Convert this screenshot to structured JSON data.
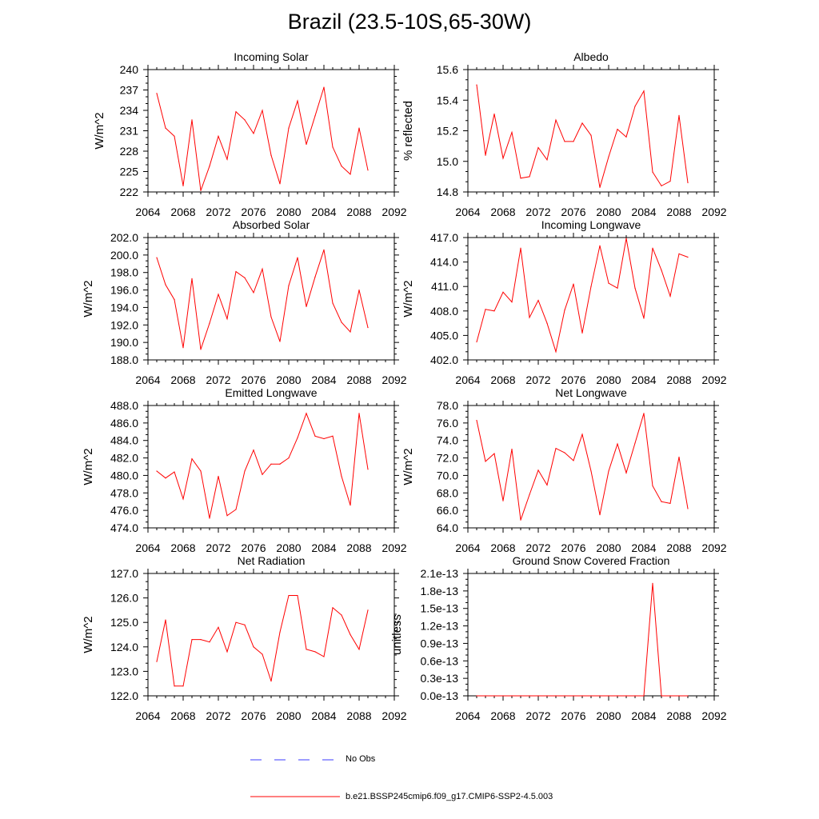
{
  "title": "Brazil (23.5-10S,65-30W)",
  "xaxis": {
    "min": 2064,
    "max": 2092,
    "ticks": [
      "2064",
      "2068",
      "2072",
      "2076",
      "2080",
      "2084",
      "2088",
      "2092"
    ]
  },
  "colors": {
    "model": "#ff0000",
    "obs": "#3b3bff",
    "axis": "#000000"
  },
  "legend": {
    "obs_label": "No Obs",
    "model_label": "b.e21.BSSP245cmip6.f09_g17.CMIP6-SSP2-4.5.003"
  },
  "chart_data": [
    {
      "type": "line",
      "title": "Incoming Solar",
      "ylabel": "W/m^2",
      "ylim": [
        222,
        240
      ],
      "yticks": [
        "222",
        "225",
        "228",
        "231",
        "234",
        "237",
        "240"
      ],
      "x": [
        2065,
        2066,
        2067,
        2068,
        2069,
        2070,
        2071,
        2072,
        2073,
        2074,
        2075,
        2076,
        2077,
        2078,
        2079,
        2080,
        2081,
        2082,
        2083,
        2084,
        2085,
        2086,
        2087,
        2088,
        2089
      ],
      "series": [
        {
          "name": "b.e21.BSSP245cmip6.f09_g17.CMIP6-SSP2-4.5.003",
          "values": [
            236.5,
            231.4,
            230.2,
            222.9,
            232.6,
            222.2,
            225.8,
            230.2,
            226.8,
            233.8,
            232.6,
            230.6,
            234.0,
            227.4,
            223.2,
            231.4,
            235.4,
            229.0,
            233.2,
            237.4,
            228.6,
            225.8,
            224.6,
            231.4,
            225.2
          ]
        }
      ]
    },
    {
      "type": "line",
      "title": "Albedo",
      "ylabel": "% reflected",
      "ylim": [
        14.8,
        15.6
      ],
      "yticks": [
        "14.8",
        "15.0",
        "15.2",
        "15.4",
        "15.6"
      ],
      "x": [
        2065,
        2066,
        2067,
        2068,
        2069,
        2070,
        2071,
        2072,
        2073,
        2074,
        2075,
        2076,
        2077,
        2078,
        2079,
        2080,
        2081,
        2082,
        2083,
        2084,
        2085,
        2086,
        2087,
        2088,
        2089
      ],
      "series": [
        {
          "name": "b.e21.BSSP245cmip6.f09_g17.CMIP6-SSP2-4.5.003",
          "values": [
            15.5,
            15.04,
            15.31,
            15.02,
            15.19,
            14.89,
            14.9,
            15.09,
            15.01,
            15.27,
            15.13,
            15.13,
            15.25,
            15.17,
            14.83,
            15.03,
            15.21,
            15.16,
            15.36,
            15.46,
            14.93,
            14.84,
            14.87,
            15.3,
            14.86
          ]
        }
      ]
    },
    {
      "type": "line",
      "title": "Absorbed Solar",
      "ylabel": "W/m^2",
      "ylim": [
        188.0,
        202.0
      ],
      "yticks": [
        "188.0",
        "190.0",
        "192.0",
        "194.0",
        "196.0",
        "198.0",
        "200.0",
        "202.0"
      ],
      "x": [
        2065,
        2066,
        2067,
        2068,
        2069,
        2070,
        2071,
        2072,
        2073,
        2074,
        2075,
        2076,
        2077,
        2078,
        2079,
        2080,
        2081,
        2082,
        2083,
        2084,
        2085,
        2086,
        2087,
        2088,
        2089
      ],
      "series": [
        {
          "name": "b.e21.BSSP245cmip6.f09_g17.CMIP6-SSP2-4.5.003",
          "values": [
            199.7,
            196.6,
            194.9,
            189.4,
            197.3,
            189.2,
            192.2,
            195.5,
            192.7,
            198.1,
            197.4,
            195.7,
            198.4,
            192.9,
            190.1,
            196.5,
            199.7,
            194.1,
            197.5,
            200.6,
            194.5,
            192.3,
            191.2,
            196.0,
            191.7
          ]
        }
      ]
    },
    {
      "type": "line",
      "title": "Incoming Longwave",
      "ylabel": "W/m^2",
      "ylim": [
        402.0,
        417.0
      ],
      "yticks": [
        "402.0",
        "405.0",
        "408.0",
        "411.0",
        "414.0",
        "417.0"
      ],
      "x": [
        2065,
        2066,
        2067,
        2068,
        2069,
        2070,
        2071,
        2072,
        2073,
        2074,
        2075,
        2076,
        2077,
        2078,
        2079,
        2080,
        2081,
        2082,
        2083,
        2084,
        2085,
        2086,
        2087,
        2088,
        2089
      ],
      "series": [
        {
          "name": "b.e21.BSSP245cmip6.f09_g17.CMIP6-SSP2-4.5.003",
          "values": [
            404.2,
            408.2,
            408.0,
            410.3,
            409.1,
            415.7,
            407.2,
            409.3,
            406.5,
            403.0,
            408.1,
            411.3,
            405.3,
            411.0,
            416.0,
            411.4,
            410.8,
            416.9,
            410.8,
            407.1,
            415.7,
            413.0,
            409.8,
            415.0,
            414.6
          ]
        }
      ]
    },
    {
      "type": "line",
      "title": "Emitted Longwave",
      "ylabel": "W/m^2",
      "ylim": [
        474.0,
        488.0
      ],
      "yticks": [
        "474.0",
        "476.0",
        "478.0",
        "480.0",
        "482.0",
        "484.0",
        "486.0",
        "488.0"
      ],
      "x": [
        2065,
        2066,
        2067,
        2068,
        2069,
        2070,
        2071,
        2072,
        2073,
        2074,
        2075,
        2076,
        2077,
        2078,
        2079,
        2080,
        2081,
        2082,
        2083,
        2084,
        2085,
        2086,
        2087,
        2088,
        2089
      ],
      "series": [
        {
          "name": "b.e21.BSSP245cmip6.f09_g17.CMIP6-SSP2-4.5.003",
          "values": [
            480.5,
            479.7,
            480.4,
            477.3,
            481.9,
            480.5,
            475.1,
            479.9,
            475.4,
            476.1,
            480.5,
            482.9,
            480.1,
            481.3,
            481.3,
            482.0,
            484.3,
            487.1,
            484.5,
            484.2,
            484.5,
            479.9,
            476.6,
            487.1,
            480.7
          ]
        }
      ]
    },
    {
      "type": "line",
      "title": "Net Longwave",
      "ylabel": "W/m^2",
      "ylim": [
        64.0,
        78.0
      ],
      "yticks": [
        "64.0",
        "66.0",
        "68.0",
        "70.0",
        "72.0",
        "74.0",
        "76.0",
        "78.0"
      ],
      "x": [
        2065,
        2066,
        2067,
        2068,
        2069,
        2070,
        2071,
        2072,
        2073,
        2074,
        2075,
        2076,
        2077,
        2078,
        2079,
        2080,
        2081,
        2082,
        2083,
        2084,
        2085,
        2086,
        2087,
        2088,
        2089
      ],
      "series": [
        {
          "name": "b.e21.BSSP245cmip6.f09_g17.CMIP6-SSP2-4.5.003",
          "values": [
            76.3,
            71.6,
            72.5,
            67.1,
            73.0,
            64.9,
            67.8,
            70.6,
            68.9,
            73.1,
            72.6,
            71.7,
            74.7,
            70.5,
            65.5,
            70.5,
            73.6,
            70.3,
            73.7,
            77.1,
            68.8,
            67.0,
            66.8,
            72.1,
            66.2
          ]
        }
      ]
    },
    {
      "type": "line",
      "title": "Net Radiation",
      "ylabel": "W/m^2",
      "ylim": [
        122.0,
        127.0
      ],
      "yticks": [
        "122.0",
        "123.0",
        "124.0",
        "125.0",
        "126.0",
        "127.0"
      ],
      "x": [
        2065,
        2066,
        2067,
        2068,
        2069,
        2070,
        2071,
        2072,
        2073,
        2074,
        2075,
        2076,
        2077,
        2078,
        2079,
        2080,
        2081,
        2082,
        2083,
        2084,
        2085,
        2086,
        2087,
        2088,
        2089
      ],
      "series": [
        {
          "name": "b.e21.BSSP245cmip6.f09_g17.CMIP6-SSP2-4.5.003",
          "values": [
            123.4,
            125.1,
            122.4,
            122.4,
            124.3,
            124.3,
            124.2,
            124.8,
            123.8,
            125.0,
            124.9,
            124.0,
            123.7,
            122.6,
            124.6,
            126.1,
            126.1,
            123.9,
            123.8,
            123.6,
            125.6,
            125.3,
            124.5,
            123.9,
            125.5
          ]
        }
      ]
    },
    {
      "type": "line",
      "title": "Ground Snow Covered Fraction",
      "ylabel": "unitless",
      "ylim": [
        0.0,
        2.1
      ],
      "yticks": [
        "0.0e-13",
        "0.3e-13",
        "0.6e-13",
        "0.9e-13",
        "1.2e-13",
        "1.5e-13",
        "1.8e-13",
        "2.1e-13"
      ],
      "x": [
        2065,
        2066,
        2067,
        2068,
        2069,
        2070,
        2071,
        2072,
        2073,
        2074,
        2075,
        2076,
        2077,
        2078,
        2079,
        2080,
        2081,
        2082,
        2083,
        2084,
        2085,
        2086,
        2087,
        2088,
        2089
      ],
      "series": [
        {
          "name": "b.e21.BSSP245cmip6.f09_g17.CMIP6-SSP2-4.5.003",
          "values": [
            0,
            0,
            0,
            0,
            0,
            0,
            0,
            0,
            0,
            0,
            0,
            0,
            0,
            0,
            0,
            0,
            0,
            0,
            0,
            0,
            1.93,
            0,
            0,
            0,
            0
          ]
        }
      ]
    }
  ]
}
